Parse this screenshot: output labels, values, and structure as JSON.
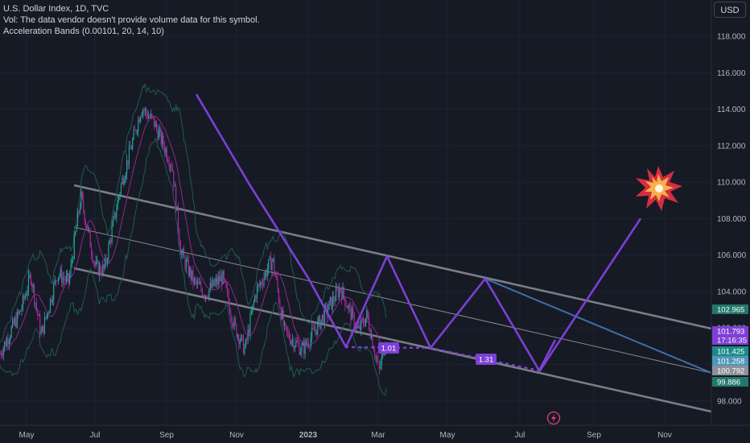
{
  "legend": {
    "title": "U.S. Dollar Index, 1D, TVC",
    "vol_note": "Vol: The data vendor doesn't provide volume data for this symbol.",
    "indicator": "Acceleration Bands (0.00101, 20, 14, 10)"
  },
  "currency_button": "USD",
  "colors": {
    "background": "#161a25",
    "grid": "#1f2330",
    "up_candle": "#26a69a",
    "down_candle": "#b526a6",
    "projection": "#7e3fd6",
    "channel": "#8b8f99",
    "band": "#1f5a52",
    "trend_blue": "#3f6fa8"
  },
  "chart_data": {
    "type": "line",
    "title": "U.S. Dollar Index, 1D, TVC",
    "x_ticks": [
      "May",
      "Jul",
      "Sep",
      "Nov",
      "2023",
      "Mar",
      "May",
      "Jul",
      "Sep",
      "Nov"
    ],
    "y_ticks": [
      "98.000",
      "100.000",
      "102.000",
      "104.000",
      "106.000",
      "108.000",
      "110.000",
      "112.000",
      "114.000",
      "116.000",
      "118.000"
    ],
    "ylim": [
      96.8,
      119.2
    ],
    "grid": true,
    "series": [
      {
        "name": "",
        "x": [
          "2022-04-05",
          "2022-05-01",
          "2022-05-13",
          "2022-05-26",
          "2022-06-15",
          "2022-06-29",
          "2022-07-14",
          "2022-08-01",
          "2022-08-12",
          "2022-09-01",
          "2022-09-27",
          "2022-10-12",
          "2022-11-04",
          "2022-11-15",
          "2022-12-01",
          "2022-12-15",
          "2023-01-05",
          "2023-01-20",
          "2023-02-02",
          "2023-02-15",
          "2023-03-08",
          "2023-03-23",
          "2023-04-14",
          "2023-04-27",
          "2023-05-31",
          "2023-06-22",
          "2023-07-03",
          "2023-07-18",
          "2023-07-28"
        ],
        "y": [
          100.6,
          103.0,
          104.9,
          101.6,
          105.0,
          104.5,
          109.2,
          105.3,
          105.2,
          109.7,
          114.1,
          113.3,
          110.9,
          106.1,
          104.5,
          103.9,
          104.8,
          102.1,
          100.8,
          103.9,
          105.8,
          101.8,
          100.8,
          101.7,
          104.2,
          101.8,
          102.7,
          99.6,
          101.8
        ]
      }
    ],
    "projection": {
      "x": [
        "2023-07-18",
        "2023-10-15"
      ],
      "y": [
        99.6,
        108.0
      ]
    },
    "annotations": [
      "1.01",
      "1.31"
    ],
    "price_labels": [
      {
        "text": "102.965",
        "color": "#22786a"
      },
      {
        "text": "101.793",
        "color": "#7e3fd6"
      },
      {
        "text": "17:16:35",
        "color": "#7e3fd6"
      },
      {
        "text": "101.425",
        "color": "#1b8a86"
      },
      {
        "text": "101.258",
        "color": "#4f97b8"
      },
      {
        "text": "100.792",
        "color": "#8d9097"
      },
      {
        "text": "99.886",
        "color": "#22786a"
      }
    ]
  }
}
